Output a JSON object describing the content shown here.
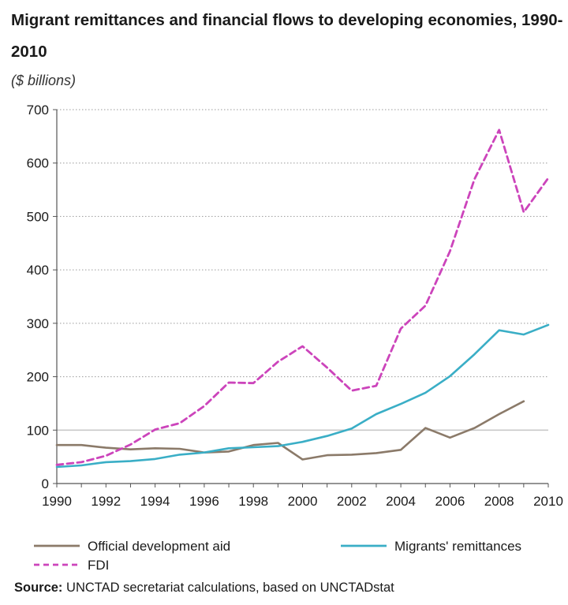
{
  "chart_data": {
    "type": "line",
    "title": "Migrant remittances and financial flows to developing economies, 1990-2010",
    "unit_label": "($ billions)",
    "x": [
      1990,
      1991,
      1992,
      1993,
      1994,
      1995,
      1996,
      1997,
      1998,
      1999,
      2000,
      2001,
      2002,
      2003,
      2004,
      2005,
      2006,
      2007,
      2008,
      2009,
      2010
    ],
    "x_ticks": [
      "1990",
      "1992",
      "1994",
      "1996",
      "1998",
      "2000",
      "2002",
      "2004",
      "2006",
      "2008",
      "2010"
    ],
    "y_ticks": [
      "0",
      "100",
      "200",
      "300",
      "400",
      "500",
      "600",
      "700"
    ],
    "xlim": [
      1990,
      2010
    ],
    "ylim": [
      0,
      700
    ],
    "grid": "horizontal dotted; solid line at 100",
    "legend_position": "bottom",
    "series": [
      {
        "name": "Official development aid",
        "color": "#8b7a69",
        "style": "solid",
        "values": [
          72,
          72,
          67,
          64,
          66,
          65,
          58,
          60,
          72,
          76,
          45,
          53,
          54,
          57,
          63,
          104,
          86,
          104,
          130,
          154,
          null
        ]
      },
      {
        "name": "Migrants' remittances",
        "color": "#3aaec6",
        "style": "solid",
        "values": [
          31,
          34,
          40,
          42,
          46,
          54,
          58,
          66,
          68,
          70,
          78,
          89,
          103,
          130,
          149,
          170,
          201,
          242,
          287,
          279,
          297
        ]
      },
      {
        "name": "FDI",
        "color": "#cc44bb",
        "style": "dashed",
        "values": [
          35,
          40,
          52,
          73,
          101,
          113,
          145,
          189,
          188,
          228,
          257,
          217,
          174,
          183,
          290,
          333,
          435,
          570,
          662,
          508,
          572
        ]
      }
    ]
  },
  "source": {
    "label": "Source:",
    "text": " UNCTAD secretariat calculations, based on UNCTADstat"
  }
}
